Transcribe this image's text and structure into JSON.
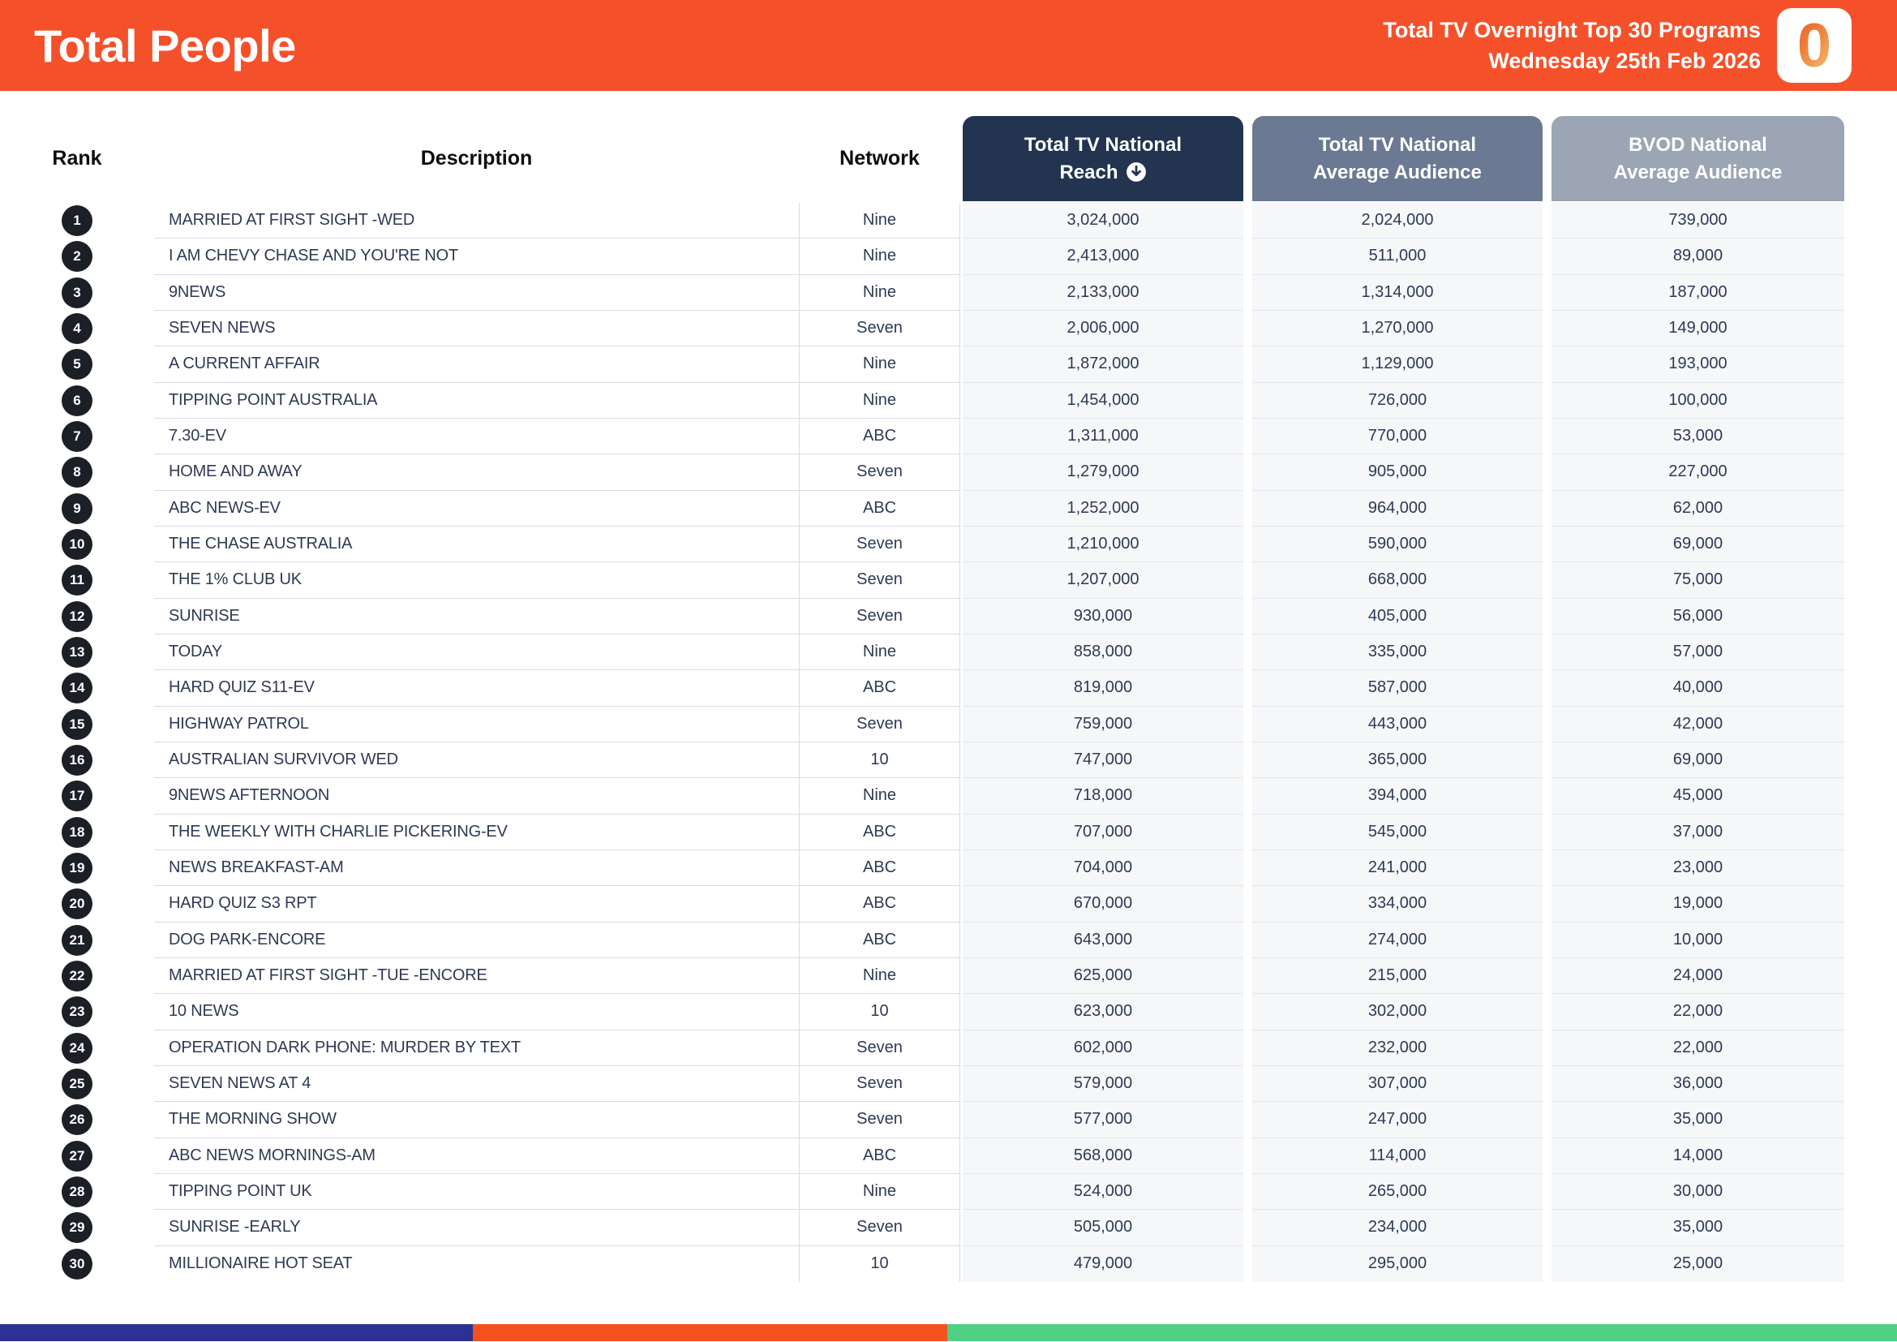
{
  "header": {
    "title": "Total People",
    "report_name": "Total TV Overnight Top 30 Programs",
    "report_date": "Wednesday 25th Feb 2026",
    "logo_glyph": "0"
  },
  "table": {
    "columns": {
      "rank": "Rank",
      "description": "Description",
      "network": "Network",
      "reach_line1": "Total TV National",
      "reach_line2": "Reach",
      "avg_line1": "Total TV National",
      "avg_line2": "Average Audience",
      "bvod_line1": "BVOD National",
      "bvod_line2": "Average Audience"
    },
    "sort_icon": "arrow-down-circle",
    "rows": [
      {
        "rank": "1",
        "description": "MARRIED AT FIRST SIGHT -WED",
        "network": "Nine",
        "reach": "3,024,000",
        "avg": "2,024,000",
        "bvod": "739,000"
      },
      {
        "rank": "2",
        "description": "I AM CHEVY CHASE AND YOU'RE NOT",
        "network": "Nine",
        "reach": "2,413,000",
        "avg": "511,000",
        "bvod": "89,000"
      },
      {
        "rank": "3",
        "description": "9NEWS",
        "network": "Nine",
        "reach": "2,133,000",
        "avg": "1,314,000",
        "bvod": "187,000"
      },
      {
        "rank": "4",
        "description": "SEVEN NEWS",
        "network": "Seven",
        "reach": "2,006,000",
        "avg": "1,270,000",
        "bvod": "149,000"
      },
      {
        "rank": "5",
        "description": "A CURRENT AFFAIR",
        "network": "Nine",
        "reach": "1,872,000",
        "avg": "1,129,000",
        "bvod": "193,000"
      },
      {
        "rank": "6",
        "description": "TIPPING POINT AUSTRALIA",
        "network": "Nine",
        "reach": "1,454,000",
        "avg": "726,000",
        "bvod": "100,000"
      },
      {
        "rank": "7",
        "description": "7.30-EV",
        "network": "ABC",
        "reach": "1,311,000",
        "avg": "770,000",
        "bvod": "53,000"
      },
      {
        "rank": "8",
        "description": "HOME AND AWAY",
        "network": "Seven",
        "reach": "1,279,000",
        "avg": "905,000",
        "bvod": "227,000"
      },
      {
        "rank": "9",
        "description": "ABC NEWS-EV",
        "network": "ABC",
        "reach": "1,252,000",
        "avg": "964,000",
        "bvod": "62,000"
      },
      {
        "rank": "10",
        "description": "THE CHASE AUSTRALIA",
        "network": "Seven",
        "reach": "1,210,000",
        "avg": "590,000",
        "bvod": "69,000"
      },
      {
        "rank": "11",
        "description": "THE 1% CLUB UK",
        "network": "Seven",
        "reach": "1,207,000",
        "avg": "668,000",
        "bvod": "75,000"
      },
      {
        "rank": "12",
        "description": "SUNRISE",
        "network": "Seven",
        "reach": "930,000",
        "avg": "405,000",
        "bvod": "56,000"
      },
      {
        "rank": "13",
        "description": "TODAY",
        "network": "Nine",
        "reach": "858,000",
        "avg": "335,000",
        "bvod": "57,000"
      },
      {
        "rank": "14",
        "description": "HARD QUIZ S11-EV",
        "network": "ABC",
        "reach": "819,000",
        "avg": "587,000",
        "bvod": "40,000"
      },
      {
        "rank": "15",
        "description": "HIGHWAY PATROL",
        "network": "Seven",
        "reach": "759,000",
        "avg": "443,000",
        "bvod": "42,000"
      },
      {
        "rank": "16",
        "description": "AUSTRALIAN SURVIVOR WED",
        "network": "10",
        "reach": "747,000",
        "avg": "365,000",
        "bvod": "69,000"
      },
      {
        "rank": "17",
        "description": "9NEWS AFTERNOON",
        "network": "Nine",
        "reach": "718,000",
        "avg": "394,000",
        "bvod": "45,000"
      },
      {
        "rank": "18",
        "description": "THE WEEKLY WITH CHARLIE PICKERING-EV",
        "network": "ABC",
        "reach": "707,000",
        "avg": "545,000",
        "bvod": "37,000"
      },
      {
        "rank": "19",
        "description": "NEWS BREAKFAST-AM",
        "network": "ABC",
        "reach": "704,000",
        "avg": "241,000",
        "bvod": "23,000"
      },
      {
        "rank": "20",
        "description": "HARD QUIZ S3 RPT",
        "network": "ABC",
        "reach": "670,000",
        "avg": "334,000",
        "bvod": "19,000"
      },
      {
        "rank": "21",
        "description": "DOG PARK-ENCORE",
        "network": "ABC",
        "reach": "643,000",
        "avg": "274,000",
        "bvod": "10,000"
      },
      {
        "rank": "22",
        "description": "MARRIED AT FIRST SIGHT -TUE -ENCORE",
        "network": "Nine",
        "reach": "625,000",
        "avg": "215,000",
        "bvod": "24,000"
      },
      {
        "rank": "23",
        "description": "10 NEWS",
        "network": "10",
        "reach": "623,000",
        "avg": "302,000",
        "bvod": "22,000"
      },
      {
        "rank": "24",
        "description": "OPERATION DARK PHONE: MURDER BY TEXT",
        "network": "Seven",
        "reach": "602,000",
        "avg": "232,000",
        "bvod": "22,000"
      },
      {
        "rank": "25",
        "description": "SEVEN NEWS AT 4",
        "network": "Seven",
        "reach": "579,000",
        "avg": "307,000",
        "bvod": "36,000"
      },
      {
        "rank": "26",
        "description": "THE MORNING SHOW",
        "network": "Seven",
        "reach": "577,000",
        "avg": "247,000",
        "bvod": "35,000"
      },
      {
        "rank": "27",
        "description": "ABC NEWS MORNINGS-AM",
        "network": "ABC",
        "reach": "568,000",
        "avg": "114,000",
        "bvod": "14,000"
      },
      {
        "rank": "28",
        "description": "TIPPING POINT UK",
        "network": "Nine",
        "reach": "524,000",
        "avg": "265,000",
        "bvod": "30,000"
      },
      {
        "rank": "29",
        "description": "SUNRISE -EARLY",
        "network": "Seven",
        "reach": "505,000",
        "avg": "234,000",
        "bvod": "35,000"
      },
      {
        "rank": "30",
        "description": "MILLIONAIRE HOT SEAT",
        "network": "10",
        "reach": "479,000",
        "avg": "295,000",
        "bvod": "25,000"
      }
    ]
  },
  "colors": {
    "banner_orange": "#F4512B",
    "reach_header": "#223450",
    "avg_header": "#6B7A92",
    "bvod_header": "#9BA5B3",
    "text_navy": "#2E3A54",
    "rank_badge": "#1B1F26",
    "num_cell_bg": "#F5F7F9",
    "bar_blue": "#2D3193",
    "bar_orange": "#F4511E",
    "bar_green": "#4FD083"
  }
}
